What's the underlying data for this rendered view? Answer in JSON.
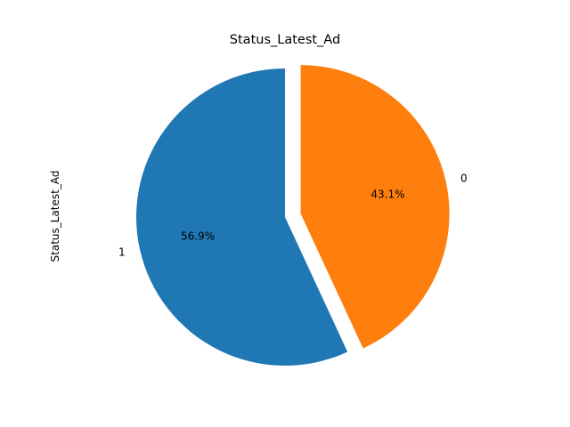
{
  "chart_data": {
    "type": "pie",
    "title": "Status_Latest_Ad",
    "ylabel": "Status_Latest_Ad",
    "slices": [
      {
        "label": "1",
        "value": 56.9,
        "pct_label": "56.9%",
        "color": "#1f77b4",
        "exploded": false
      },
      {
        "label": "0",
        "value": 43.1,
        "pct_label": "43.1%",
        "color": "#ff7f0e",
        "exploded": true
      }
    ],
    "legend": false
  }
}
